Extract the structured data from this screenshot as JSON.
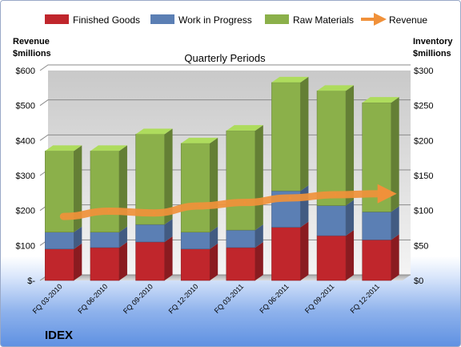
{
  "chart_data": {
    "type": "bar",
    "title": "Quarterly Periods",
    "company": "IDEX",
    "left_axis_title": [
      "Revenue",
      "$millions"
    ],
    "right_axis_title": [
      "Inventory",
      "$millions"
    ],
    "left_ticks": [
      "$-",
      "$100",
      "$200",
      "$300",
      "$400",
      "$500",
      "$600"
    ],
    "right_ticks": [
      "$0",
      "$50",
      "$100",
      "$150",
      "$200",
      "$250",
      "$300"
    ],
    "ylim_left": [
      0,
      600
    ],
    "ylim_right": [
      0,
      300
    ],
    "categories": [
      "FQ 03-2010",
      "FQ 06-2010",
      "FQ 09-2010",
      "FQ 12-2010",
      "FQ 03-2011",
      "FQ 06-2011",
      "FQ 09-2011",
      "FQ 12-2011"
    ],
    "series": [
      {
        "name": "Finished Goods",
        "axis": "right",
        "color": "#c0262c",
        "values": [
          45,
          47,
          55,
          45,
          47,
          76,
          64,
          58
        ]
      },
      {
        "name": "Work in Progress",
        "axis": "right",
        "color": "#5b7fb4",
        "values": [
          24,
          22,
          25,
          24,
          25,
          52,
          43,
          40
        ]
      },
      {
        "name": "Raw Materials",
        "axis": "right",
        "color": "#8bb04a",
        "values": [
          116,
          116,
          129,
          127,
          142,
          155,
          164,
          156
        ]
      }
    ],
    "revenue": {
      "name": "Revenue",
      "axis": "left",
      "color": "#f0913a",
      "values": [
        175,
        190,
        185,
        205,
        215,
        228,
        237,
        240
      ]
    },
    "legend": [
      "Finished Goods",
      "Work in Progress",
      "Raw Materials",
      "Revenue"
    ],
    "legend_position": "top",
    "grid": true
  }
}
